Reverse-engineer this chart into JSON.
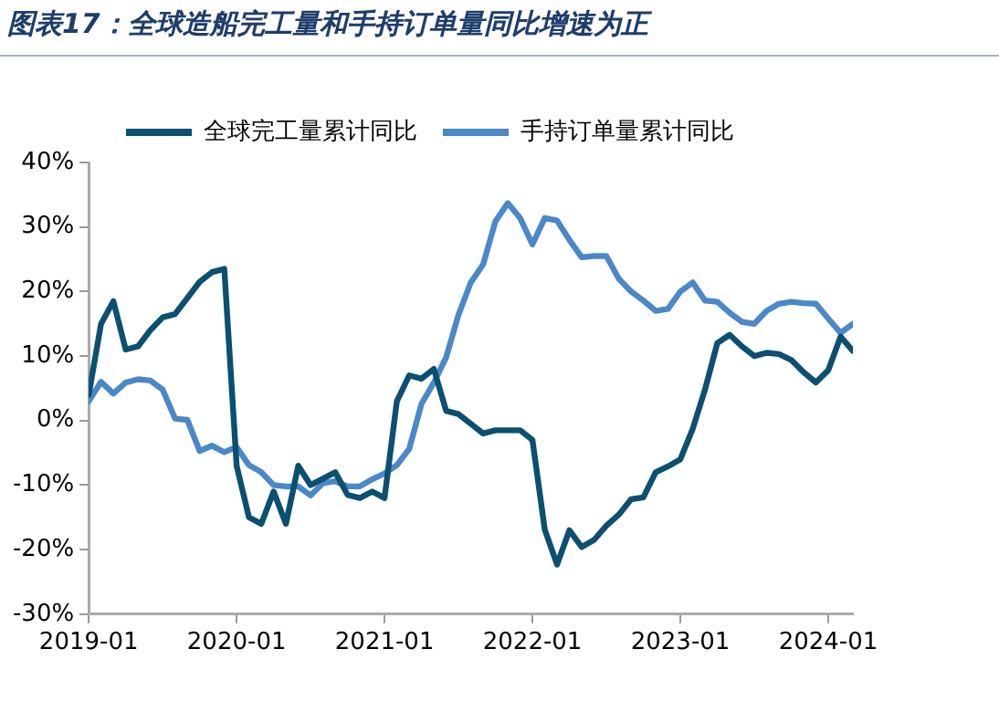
{
  "chart_data": {
    "type": "line",
    "title": "图表17：全球造船完工量和手持订单量同比增速为正",
    "x": [
      "2019-01",
      "2019-02",
      "2019-03",
      "2019-04",
      "2019-05",
      "2019-06",
      "2019-07",
      "2019-08",
      "2019-09",
      "2019-10",
      "2019-11",
      "2019-12",
      "2020-01",
      "2020-02",
      "2020-03",
      "2020-04",
      "2020-05",
      "2020-06",
      "2020-07",
      "2020-08",
      "2020-09",
      "2020-10",
      "2020-11",
      "2020-12",
      "2021-01",
      "2021-02",
      "2021-03",
      "2021-04",
      "2021-05",
      "2021-06",
      "2021-07",
      "2021-08",
      "2021-09",
      "2021-10",
      "2021-11",
      "2021-12",
      "2022-01",
      "2022-02",
      "2022-03",
      "2022-04",
      "2022-05",
      "2022-06",
      "2022-07",
      "2022-08",
      "2022-09",
      "2022-10",
      "2022-11",
      "2022-12",
      "2023-01",
      "2023-02",
      "2023-03",
      "2023-04",
      "2023-05",
      "2023-06",
      "2023-07",
      "2023-08",
      "2023-09",
      "2023-10",
      "2023-11",
      "2023-12",
      "2024-01",
      "2024-02",
      "2024-03"
    ],
    "series": [
      {
        "name": "全球完工量累计同比",
        "color": "#0b4f71",
        "values": [
          4,
          15,
          18.5,
          11,
          11.5,
          14,
          16,
          16.5,
          19,
          21.5,
          23,
          23.5,
          -7,
          -15,
          -16,
          -11,
          -16,
          -7,
          -10,
          -9,
          -8,
          -11.5,
          -12,
          -11,
          -12,
          3,
          7,
          6.5,
          8,
          1.5,
          1,
          -0.5,
          -2,
          -1.5,
          -1.5,
          -1.5,
          -3,
          -16.9,
          -22.3,
          -17,
          -19.6,
          -18.5,
          -16.3,
          -14.6,
          -12.2,
          -11.9,
          -8,
          -7.1,
          -6,
          -1.3,
          4.8,
          12,
          13.3,
          11.5,
          10,
          10.5,
          10.3,
          9.4,
          7.5,
          5.9,
          7.8,
          13,
          10.8
        ]
      },
      {
        "name": "手持订单量累计同比",
        "color": "#4a88c8",
        "values": [
          3,
          6,
          4.2,
          5.9,
          6.4,
          6.2,
          4.8,
          0.3,
          0.1,
          -4.7,
          -3.9,
          -4.9,
          -4.1,
          -6.9,
          -8,
          -10,
          -10.2,
          -10.2,
          -11.6,
          -9.7,
          -9.4,
          -10.2,
          -10.2,
          -9.1,
          -8.2,
          -6.9,
          -4.4,
          2.6,
          5.9,
          9.8,
          16.4,
          21.4,
          24.2,
          30.9,
          33.7,
          31.4,
          27.3,
          31.4,
          31,
          28,
          25.3,
          25.5,
          25.5,
          22,
          20,
          18.6,
          17,
          17.3,
          20,
          21.4,
          18.6,
          18.4,
          16.7,
          15.3,
          15,
          17,
          18.1,
          18.4,
          18.2,
          18.1,
          15.8,
          13.6,
          15
        ]
      }
    ],
    "xlim": [
      "2019-01",
      "2024-03"
    ],
    "xticks": [
      "2019-01",
      "2020-01",
      "2021-01",
      "2022-01",
      "2023-01",
      "2024-01"
    ],
    "ylim": [
      -30,
      40
    ],
    "yticks": [
      {
        "value": -30,
        "label": "-30%"
      },
      {
        "value": -20,
        "label": "-20%"
      },
      {
        "value": -10,
        "label": "-10%"
      },
      {
        "value": 0,
        "label": "0%"
      },
      {
        "value": 10,
        "label": "10%"
      },
      {
        "value": 20,
        "label": "20%"
      },
      {
        "value": 30,
        "label": "30%"
      },
      {
        "value": 40,
        "label": "40%"
      }
    ],
    "legend": "top",
    "grid": false
  }
}
